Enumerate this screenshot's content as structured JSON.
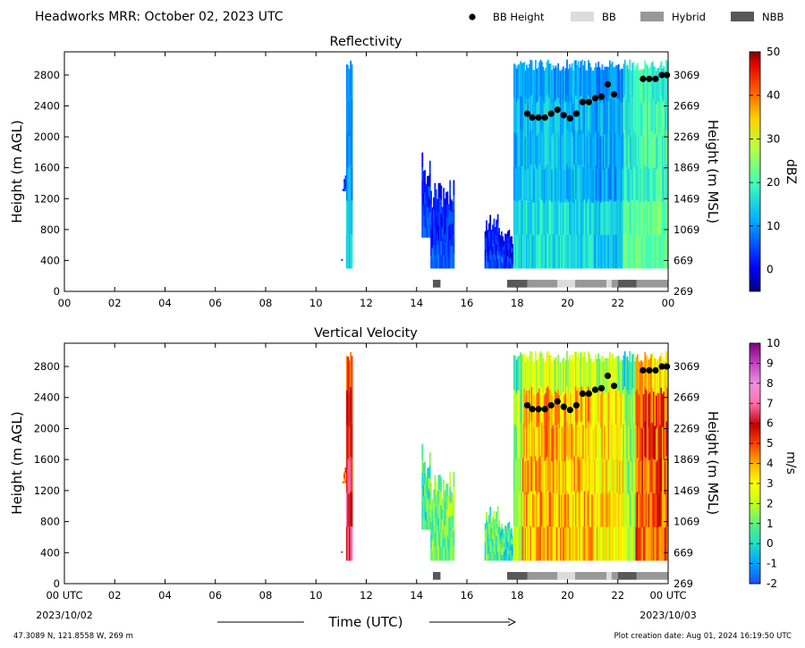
{
  "header": {
    "title": "Headworks MRR:  October 02, 2023 UTC",
    "legend": [
      {
        "label": "BB Height",
        "color": "#000000",
        "symbol": "dot"
      },
      {
        "label": "BB",
        "color": "#dcdcdc",
        "symbol": "patch"
      },
      {
        "label": "Hybrid",
        "color": "#989898",
        "symbol": "patch"
      },
      {
        "label": "NBB",
        "color": "#585858",
        "symbol": "patch"
      }
    ]
  },
  "footer": {
    "location": "47.3089 N, 121.8558 W, 269 m",
    "creation": "Plot creation date: Aug 01, 2024 16:19:50 UTC",
    "time_label": "Time (UTC)",
    "start_date": "2023/10/02",
    "end_date": "2023/10/03"
  },
  "chart_data": [
    {
      "type": "heatmap",
      "title": "Reflectivity",
      "ylabel": "Height (m AGL)",
      "ylabel_right": "Height (m MSL)",
      "colorbar_label": "dBZ",
      "colorbar_ticks": [
        "50",
        "40",
        "30",
        "20",
        "10",
        "0"
      ],
      "colorbar_range": [
        -5,
        50
      ],
      "x_ticks": [
        "00",
        "02",
        "04",
        "06",
        "08",
        "10",
        "12",
        "14",
        "16",
        "18",
        "20",
        "22",
        "00"
      ],
      "y_ticks": [
        "0",
        "400",
        "800",
        "1200",
        "1600",
        "2000",
        "2400",
        "2800"
      ],
      "y_ticks_right": [
        "269",
        "669",
        "1069",
        "1469",
        "1869",
        "2269",
        "2669",
        "3069"
      ],
      "xlim": [
        0,
        24
      ],
      "ylim": [
        0,
        3100
      ]
    },
    {
      "type": "heatmap",
      "title": "Vertical Velocity",
      "ylabel": "Height (m AGL)",
      "ylabel_right": "Height (m MSL)",
      "colorbar_label": "m/s",
      "colorbar_ticks": [
        "10",
        "9",
        "8",
        "7",
        "6",
        "5",
        "4",
        "3",
        "2",
        "1",
        "0",
        "-1",
        "-2"
      ],
      "colorbar_range": [
        -2,
        10
      ],
      "x_ticks": [
        "00 UTC",
        "02",
        "04",
        "06",
        "08",
        "10",
        "12",
        "14",
        "16",
        "18",
        "20",
        "22",
        "00 UTC"
      ],
      "y_ticks": [
        "0",
        "400",
        "800",
        "1200",
        "1600",
        "2000",
        "2400",
        "2800"
      ],
      "y_ticks_right": [
        "269",
        "669",
        "1069",
        "1469",
        "1869",
        "2269",
        "2669",
        "3069"
      ],
      "xlim": [
        0,
        24
      ],
      "ylim": [
        0,
        3100
      ]
    }
  ],
  "bb_height_points": {
    "x": [
      18.4,
      18.6,
      18.85,
      19.1,
      19.35,
      19.6,
      19.85,
      20.1,
      20.35,
      20.6,
      20.85,
      21.1,
      21.35,
      21.6,
      21.85,
      23.0,
      23.25,
      23.5,
      23.75,
      23.95
    ],
    "y": [
      2300,
      2250,
      2250,
      2250,
      2300,
      2350,
      2280,
      2240,
      2300,
      2450,
      2450,
      2500,
      2520,
      2680,
      2550,
      2750,
      2750,
      2750,
      2800,
      2800
    ]
  },
  "bb_type_bar": [
    {
      "start": 14.65,
      "end": 14.95,
      "type": "NBB"
    },
    {
      "start": 17.6,
      "end": 18.4,
      "type": "NBB"
    },
    {
      "start": 18.4,
      "end": 19.6,
      "type": "Hybrid"
    },
    {
      "start": 19.6,
      "end": 20.3,
      "type": "BB"
    },
    {
      "start": 20.3,
      "end": 21.55,
      "type": "Hybrid"
    },
    {
      "start": 21.55,
      "end": 21.75,
      "type": "BB"
    },
    {
      "start": 21.75,
      "end": 22.0,
      "type": "Hybrid"
    },
    {
      "start": 22.0,
      "end": 22.75,
      "type": "NBB"
    },
    {
      "start": 22.75,
      "end": 24.0,
      "type": "Hybrid"
    }
  ],
  "precip_segments": [
    {
      "start": 11.0,
      "end": 11.05,
      "top": 500,
      "bottom": 400,
      "refl": 3,
      "vel": 5.5
    },
    {
      "start": 11.05,
      "end": 11.2,
      "top": 1700,
      "bottom": 1300,
      "refl": 3,
      "vel": 4.5
    },
    {
      "start": 11.2,
      "end": 11.45,
      "top": 3000,
      "bottom": 300,
      "refl": 11,
      "vel": 6.2
    },
    {
      "start": 14.2,
      "end": 14.55,
      "top": 1800,
      "bottom": 700,
      "refl": 3,
      "vel": 0.6
    },
    {
      "start": 14.55,
      "end": 15.5,
      "top": 1450,
      "bottom": 300,
      "refl": 3,
      "vel": 1.1
    },
    {
      "start": 16.7,
      "end": 17.3,
      "top": 1000,
      "bottom": 300,
      "refl": 2,
      "vel": 0.8
    },
    {
      "start": 17.3,
      "end": 17.85,
      "top": 800,
      "bottom": 300,
      "refl": 2,
      "vel": 0.5
    },
    {
      "start": 17.85,
      "end": 18.2,
      "top": 3000,
      "bottom": 300,
      "refl": 12,
      "vel": 1.6
    },
    {
      "start": 18.2,
      "end": 21.0,
      "top": 3000,
      "bottom": 300,
      "refl": 13,
      "vel": 3.8
    },
    {
      "start": 21.0,
      "end": 22.2,
      "top": 3000,
      "bottom": 300,
      "refl": 11,
      "vel": 3.2
    },
    {
      "start": 22.2,
      "end": 22.7,
      "top": 3000,
      "bottom": 300,
      "refl": 18,
      "vel": 1.7
    },
    {
      "start": 22.7,
      "end": 24.0,
      "top": 3000,
      "bottom": 300,
      "refl": 20,
      "vel": 5.0
    }
  ]
}
